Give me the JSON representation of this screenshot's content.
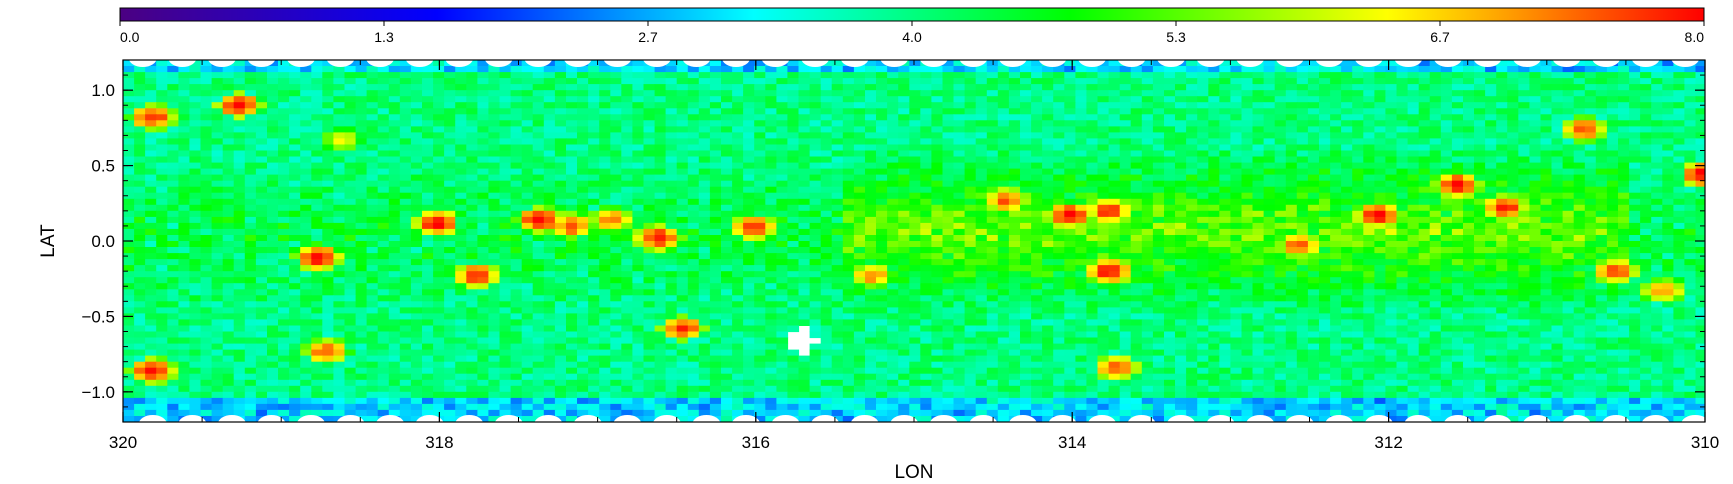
{
  "chart_data": {
    "type": "heatmap",
    "title": "",
    "xlabel": "LON",
    "ylabel": "LAT",
    "x_reversed": true,
    "xlim": [
      320,
      310
    ],
    "ylim": [
      -1.2,
      1.2
    ],
    "xticks": [
      "320",
      "318",
      "316",
      "314",
      "312",
      "310"
    ],
    "yticks": [
      "1.0",
      "0.5",
      "0.0",
      "−0.5",
      "−1.0"
    ],
    "colorbar": {
      "range": [
        0.0,
        8.0
      ],
      "ticks": [
        "0.0",
        "1.3",
        "2.7",
        "4.0",
        "5.3",
        "6.7",
        "8.0"
      ],
      "colormap": "rainbow",
      "colors": [
        "#4b0082",
        "#0000ff",
        "#00ffff",
        "#00ff00",
        "#ffff00",
        "#ff0000"
      ],
      "position": "top"
    },
    "background_value": 4.0,
    "hotspots": [
      {
        "lon": 319.3,
        "lat": 0.88,
        "value": 8.0
      },
      {
        "lon": 319.85,
        "lat": 0.8,
        "value": 7.8
      },
      {
        "lon": 319.85,
        "lat": -0.88,
        "value": 8.0
      },
      {
        "lon": 318.8,
        "lat": -0.13,
        "value": 8.0
      },
      {
        "lon": 318.75,
        "lat": -0.75,
        "value": 7.5
      },
      {
        "lon": 318.65,
        "lat": 0.65,
        "value": 6.5
      },
      {
        "lon": 318.05,
        "lat": 0.1,
        "value": 8.0
      },
      {
        "lon": 317.8,
        "lat": -0.25,
        "value": 7.8
      },
      {
        "lon": 317.4,
        "lat": 0.12,
        "value": 8.0
      },
      {
        "lon": 317.2,
        "lat": 0.08,
        "value": 7.6
      },
      {
        "lon": 316.95,
        "lat": 0.12,
        "value": 7.3
      },
      {
        "lon": 316.65,
        "lat": 0.0,
        "value": 8.0
      },
      {
        "lon": 316.5,
        "lat": -0.6,
        "value": 7.8
      },
      {
        "lon": 316.05,
        "lat": 0.07,
        "value": 7.8
      },
      {
        "lon": 315.3,
        "lat": -0.25,
        "value": 7.2
      },
      {
        "lon": 314.45,
        "lat": 0.25,
        "value": 7.5
      },
      {
        "lon": 314.05,
        "lat": 0.15,
        "value": 8.0
      },
      {
        "lon": 313.8,
        "lat": -0.22,
        "value": 8.0
      },
      {
        "lon": 313.8,
        "lat": 0.18,
        "value": 7.8
      },
      {
        "lon": 313.75,
        "lat": -0.86,
        "value": 7.6
      },
      {
        "lon": 312.6,
        "lat": -0.05,
        "value": 7.4
      },
      {
        "lon": 312.1,
        "lat": 0.15,
        "value": 8.0
      },
      {
        "lon": 311.6,
        "lat": 0.35,
        "value": 8.0
      },
      {
        "lon": 311.3,
        "lat": 0.2,
        "value": 7.8
      },
      {
        "lon": 310.8,
        "lat": 0.72,
        "value": 7.6
      },
      {
        "lon": 310.6,
        "lat": -0.22,
        "value": 7.6
      },
      {
        "lon": 310.05,
        "lat": 0.42,
        "value": 8.0
      },
      {
        "lon": 310.3,
        "lat": -0.35,
        "value": 7.2
      }
    ],
    "warm_band": {
      "lon_range": [
        315.5,
        310.5
      ],
      "lat_center": 0.05,
      "value": 5.6
    },
    "masked_region": {
      "lon": 315.75,
      "lat": -0.68
    }
  }
}
